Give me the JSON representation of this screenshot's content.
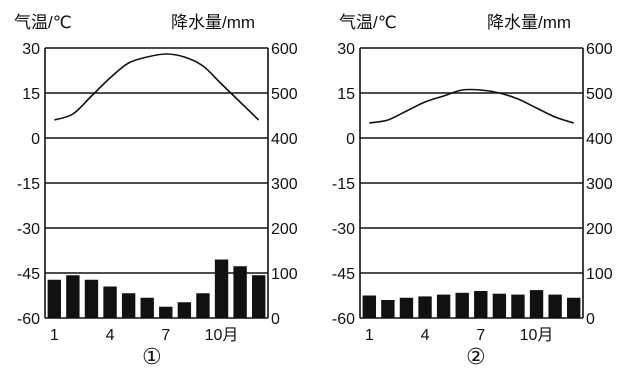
{
  "chart_data": [
    {
      "type": "bar+line",
      "label": "①",
      "temp_axis_label": "气温/℃",
      "precip_axis_label": "降水量/mm",
      "temp_ticks": [
        "30",
        "15",
        "0",
        "-15",
        "-30",
        "-45",
        "-60"
      ],
      "precip_ticks": [
        "600",
        "500",
        "400",
        "300",
        "200",
        "100",
        "0"
      ],
      "x_ticks": [
        {
          "month": 1,
          "label": "1"
        },
        {
          "month": 4,
          "label": "4"
        },
        {
          "month": 7,
          "label": "7"
        },
        {
          "month": 10,
          "label": "10月"
        }
      ],
      "temp_ylim": [
        -60,
        30
      ],
      "precip_ylim": [
        0,
        600
      ],
      "months": [
        1,
        2,
        3,
        4,
        5,
        6,
        7,
        8,
        9,
        10,
        11,
        12
      ],
      "temperature": [
        6,
        8,
        14,
        20,
        25,
        27,
        28,
        27,
        24,
        18,
        12,
        6
      ],
      "precipitation": [
        85,
        95,
        85,
        70,
        55,
        45,
        25,
        35,
        55,
        130,
        115,
        95
      ]
    },
    {
      "type": "bar+line",
      "label": "②",
      "temp_axis_label": "气温/℃",
      "precip_axis_label": "降水量/mm",
      "temp_ticks": [
        "30",
        "15",
        "0",
        "-15",
        "-30",
        "-45",
        "-60"
      ],
      "precip_ticks": [
        "600",
        "500",
        "400",
        "300",
        "200",
        "100",
        "0"
      ],
      "x_ticks": [
        {
          "month": 1,
          "label": "1"
        },
        {
          "month": 4,
          "label": "4"
        },
        {
          "month": 7,
          "label": "7"
        },
        {
          "month": 10,
          "label": "10月"
        }
      ],
      "temp_ylim": [
        -60,
        30
      ],
      "precip_ylim": [
        0,
        600
      ],
      "months": [
        1,
        2,
        3,
        4,
        5,
        6,
        7,
        8,
        9,
        10,
        11,
        12
      ],
      "temperature": [
        5,
        6,
        9,
        12,
        14,
        16,
        16,
        15,
        13,
        10,
        7,
        5
      ],
      "precipitation": [
        50,
        40,
        45,
        48,
        52,
        56,
        60,
        54,
        52,
        62,
        52,
        45
      ]
    }
  ]
}
